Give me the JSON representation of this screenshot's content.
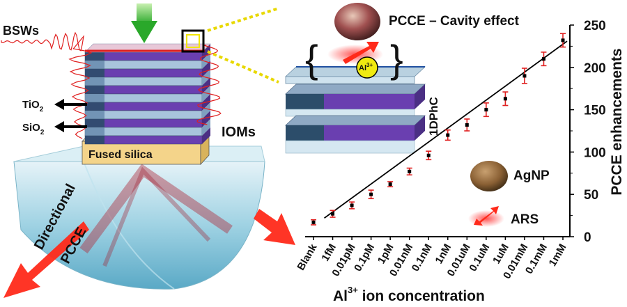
{
  "labels": {
    "bsws": "BSWs",
    "tio2": "TiO",
    "tio2_sub": "2",
    "sio2": "SiO",
    "sio2_sub": "2",
    "fused_silica": "Fused silica",
    "ioms": "IOMs",
    "directional": "Directional",
    "pcce": "PCCE",
    "cavity_title": "PCCE – Cavity effect",
    "al_ion": "Al",
    "al_ion_sup": "3+",
    "onedphc": "1DPhC",
    "agnp": "AgNP",
    "ars": "ARS"
  },
  "colors": {
    "tio2_layer": "#6a3fb0",
    "sio2_layer": "#a8c4dc",
    "surface_line": "#e02020",
    "error_bar": "#e02020",
    "fit_line": "#000000",
    "arrow": "#ff2a1a",
    "silica": "#f4d48a",
    "prism": "#8ec9dc",
    "pump_arrow": "#3cc43c"
  },
  "chart_data": {
    "type": "scatter",
    "categories": [
      "Blank",
      "1fM",
      "0.01pM",
      "0.1pM",
      "1pM",
      "0.01nM",
      "0.1nM",
      "1nM",
      "0.01uM",
      "0.1uM",
      "1uM",
      "0.01mM",
      "0.1mM",
      "1mM"
    ],
    "values": [
      17,
      27,
      37,
      50,
      62,
      77,
      96,
      120,
      132,
      150,
      163,
      190,
      210,
      232
    ],
    "errors": [
      3,
      4,
      4,
      5,
      3,
      4,
      5,
      6,
      7,
      8,
      8,
      9,
      8,
      8
    ],
    "fit_line": {
      "from_index": 1,
      "to_index": 13,
      "y_from": 22,
      "y_to": 231
    },
    "ylabel": "PCCE enhancements",
    "xlabel_prefix": "Al",
    "xlabel_sup": "3+",
    "xlabel_suffix": " ion concentration",
    "ylim": [
      0,
      250
    ],
    "yticks": [
      0,
      50,
      100,
      150,
      200,
      250
    ],
    "yaxis_side": "right"
  }
}
